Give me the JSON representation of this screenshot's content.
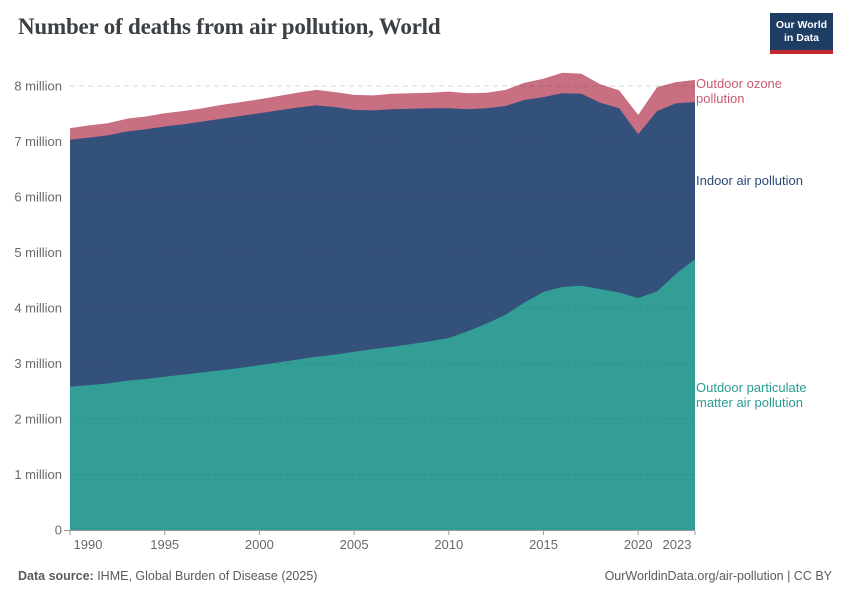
{
  "header": {
    "title": "Number of deaths from air pollution, World",
    "logo": {
      "line1": "Our World",
      "line2": "in Data"
    }
  },
  "colors": {
    "outdoor_pm_fill": "#329e96",
    "indoor_fill": "#33517a",
    "ozone_fill": "#c86f81",
    "ozone_label": "#c55b70",
    "indoor_label": "#2d4876",
    "outdoor_pm_label": "#2a9c92",
    "logo_navy": "#1d3d63",
    "logo_red": "#c1272d",
    "axis_text": "#66696e",
    "title_text": "#3b4045"
  },
  "legend": {
    "ozone": {
      "line1": "Outdoor ozone",
      "line2": "pollution"
    },
    "indoor": {
      "line1": "Indoor air pollution",
      "line2": ""
    },
    "pm": {
      "line1": "Outdoor particulate",
      "line2": "matter air pollution"
    }
  },
  "footer": {
    "source_label": "Data source:",
    "source_text": " IHME, Global Burden of Disease (2025)",
    "credit": "OurWorldinData.org/air-pollution | CC BY"
  },
  "chart_data": {
    "type": "area",
    "stacked": true,
    "title": "Number of deaths from air pollution, World",
    "unit": "deaths (millions)",
    "ylim": [
      0,
      8
    ],
    "grid": "dashed-horizontal",
    "legend_position": "right-direct-labels",
    "x": [
      1990,
      1991,
      1992,
      1993,
      1994,
      1995,
      1996,
      1997,
      1998,
      1999,
      2000,
      2001,
      2002,
      2003,
      2004,
      2005,
      2006,
      2007,
      2008,
      2009,
      2010,
      2011,
      2012,
      2013,
      2014,
      2015,
      2016,
      2017,
      2018,
      2019,
      2020,
      2021,
      2022,
      2023
    ],
    "series": [
      {
        "id": "outdoor-pm",
        "name": "Outdoor particulate matter air pollution",
        "color": "#329e96",
        "values": [
          2.58,
          2.61,
          2.64,
          2.69,
          2.72,
          2.76,
          2.8,
          2.84,
          2.88,
          2.92,
          2.97,
          3.02,
          3.07,
          3.12,
          3.16,
          3.21,
          3.26,
          3.3,
          3.35,
          3.4,
          3.46,
          3.58,
          3.72,
          3.88,
          4.1,
          4.29,
          4.38,
          4.4,
          4.34,
          4.28,
          4.18,
          4.3,
          4.62,
          4.88
        ]
      },
      {
        "id": "indoor",
        "name": "Indoor air pollution",
        "color": "#33517a",
        "values": [
          4.45,
          4.46,
          4.47,
          4.49,
          4.5,
          4.51,
          4.51,
          4.52,
          4.53,
          4.54,
          4.54,
          4.54,
          4.54,
          4.53,
          4.46,
          4.36,
          4.3,
          4.28,
          4.24,
          4.2,
          4.14,
          4.0,
          3.88,
          3.76,
          3.65,
          3.51,
          3.49,
          3.46,
          3.36,
          3.32,
          2.95,
          3.25,
          3.07,
          2.83
        ]
      },
      {
        "id": "ozone",
        "name": "Outdoor ozone pollution",
        "color": "#c86f81",
        "values": [
          0.21,
          0.22,
          0.22,
          0.23,
          0.23,
          0.24,
          0.24,
          0.24,
          0.25,
          0.25,
          0.25,
          0.26,
          0.27,
          0.28,
          0.27,
          0.27,
          0.27,
          0.28,
          0.28,
          0.28,
          0.3,
          0.29,
          0.28,
          0.29,
          0.31,
          0.33,
          0.37,
          0.36,
          0.33,
          0.32,
          0.35,
          0.43,
          0.38,
          0.4
        ]
      }
    ],
    "y_ticks": [
      {
        "value": 0,
        "label": "0"
      },
      {
        "value": 1,
        "label": "1 million"
      },
      {
        "value": 2,
        "label": "2 million"
      },
      {
        "value": 3,
        "label": "3 million"
      },
      {
        "value": 4,
        "label": "4 million"
      },
      {
        "value": 5,
        "label": "5 million"
      },
      {
        "value": 6,
        "label": "6 million"
      },
      {
        "value": 7,
        "label": "7 million"
      },
      {
        "value": 8,
        "label": "8 million"
      }
    ],
    "x_ticks": [
      {
        "value": 1990,
        "label": "1990"
      },
      {
        "value": 1995,
        "label": "1995"
      },
      {
        "value": 2000,
        "label": "2000"
      },
      {
        "value": 2005,
        "label": "2005"
      },
      {
        "value": 2010,
        "label": "2010"
      },
      {
        "value": 2015,
        "label": "2015"
      },
      {
        "value": 2020,
        "label": "2020"
      },
      {
        "value": 2023,
        "label": "2023"
      }
    ]
  }
}
